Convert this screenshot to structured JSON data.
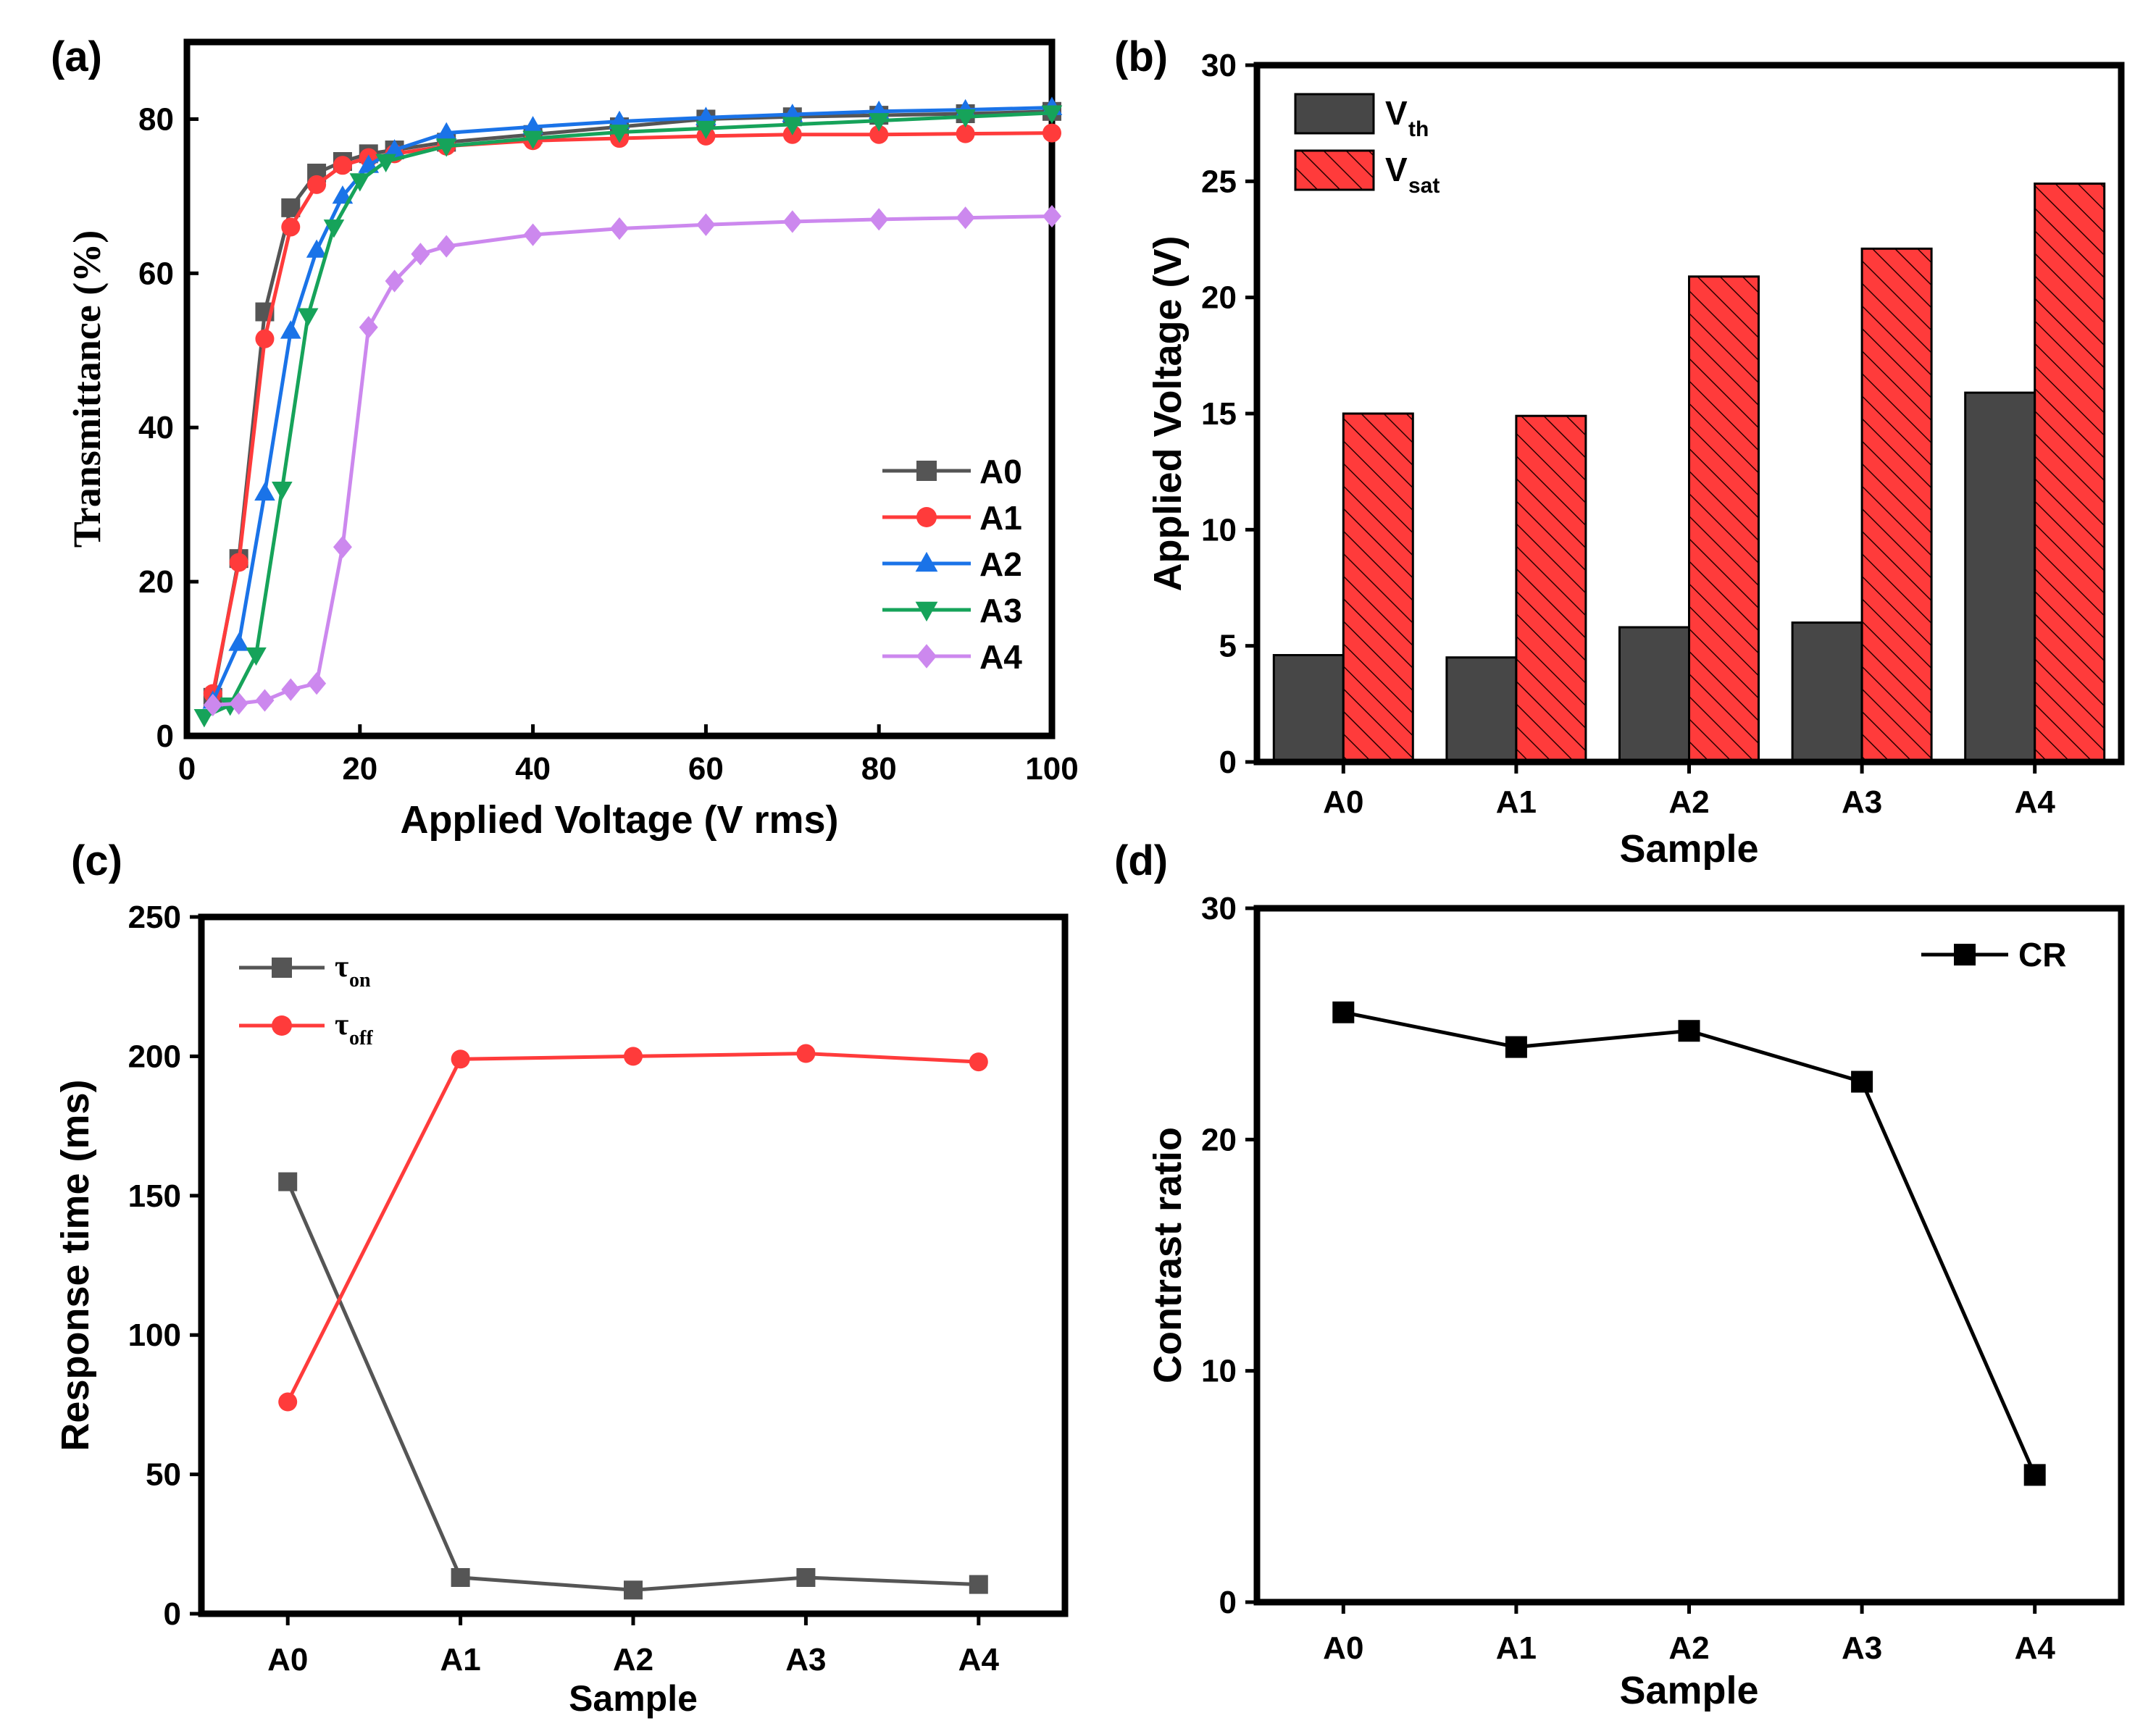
{
  "colors": {
    "A0": "#555555",
    "A1": "#ff3b3b",
    "A2": "#1a73e8",
    "A3": "#16a35a",
    "A4": "#cc88ee",
    "vth": "#474747",
    "vsat": "#ff3b3b",
    "ton": "#555555",
    "toff": "#ff3b3b",
    "cr": "#000000"
  },
  "chart_data": [
    {
      "panel": "(a)",
      "type": "line",
      "title": "",
      "xlabel": "Applied Voltage (V rms)",
      "ylabel": "Transmittance (%)",
      "xlim": [
        0,
        100
      ],
      "ylim": [
        0,
        90
      ],
      "xticks": [
        "0",
        "20",
        "40",
        "60",
        "80",
        "100"
      ],
      "yticks": [
        "0",
        "20",
        "40",
        "60",
        "80"
      ],
      "legend_position": "bottom-right",
      "series": [
        {
          "name": "A0",
          "marker": "square",
          "color_key": "A0",
          "x": [
            3,
            6,
            9,
            12,
            15,
            18,
            21,
            24,
            30,
            40,
            50,
            60,
            70,
            80,
            90,
            100
          ],
          "y": [
            5,
            23,
            55,
            68.5,
            73,
            74.5,
            75.5,
            76,
            77,
            78,
            79,
            80,
            80.3,
            80.5,
            80.7,
            81
          ]
        },
        {
          "name": "A1",
          "marker": "circle",
          "color_key": "A1",
          "x": [
            3,
            6,
            9,
            12,
            15,
            18,
            21,
            24,
            30,
            40,
            50,
            60,
            70,
            80,
            90,
            100
          ],
          "y": [
            5.5,
            22.5,
            51.5,
            66,
            71.5,
            74,
            75,
            75.5,
            76.5,
            77.2,
            77.5,
            77.8,
            78,
            78,
            78.1,
            78.2
          ]
        },
        {
          "name": "A2",
          "marker": "triangle-up",
          "color_key": "A2",
          "x": [
            3,
            6,
            9,
            12,
            15,
            18,
            21,
            24,
            30,
            40,
            50,
            60,
            70,
            80,
            90,
            100
          ],
          "y": [
            4.5,
            12,
            31.5,
            52.5,
            63,
            70,
            74,
            76,
            78.2,
            79,
            79.7,
            80.2,
            80.6,
            81,
            81.2,
            81.5
          ]
        },
        {
          "name": "A3",
          "marker": "triangle-down",
          "color_key": "A3",
          "x": [
            2,
            5,
            8,
            11,
            14,
            17,
            20,
            23,
            30,
            40,
            50,
            60,
            70,
            80,
            90,
            100
          ],
          "y": [
            2.5,
            4,
            10.5,
            32,
            54.5,
            66,
            72,
            74.5,
            76.5,
            77.5,
            78.3,
            78.8,
            79.3,
            79.8,
            80.3,
            80.8
          ]
        },
        {
          "name": "A4",
          "marker": "diamond",
          "color_key": "A4",
          "x": [
            3,
            6,
            9,
            12,
            15,
            18,
            21,
            24,
            27,
            30,
            40,
            50,
            60,
            70,
            80,
            90,
            100
          ],
          "y": [
            4,
            4.2,
            4.6,
            6,
            6.8,
            24.5,
            53,
            59,
            62.5,
            63.5,
            65,
            65.8,
            66.3,
            66.7,
            67,
            67.2,
            67.4
          ]
        }
      ]
    },
    {
      "panel": "(b)",
      "type": "bar",
      "title": "",
      "xlabel": "Sample",
      "ylabel": "Applied Voltage (V)",
      "categories": [
        "A0",
        "A1",
        "A2",
        "A3",
        "A4"
      ],
      "ylim": [
        0,
        30
      ],
      "yticks": [
        "0",
        "5",
        "10",
        "15",
        "20",
        "25",
        "30"
      ],
      "legend_position": "top-left",
      "series": [
        {
          "name": "V",
          "sub": "th",
          "color_key": "vth",
          "hatched": false,
          "values": [
            4.6,
            4.5,
            5.8,
            6.0,
            15.9
          ]
        },
        {
          "name": "V",
          "sub": "sat",
          "color_key": "vsat",
          "hatched": true,
          "values": [
            15.0,
            14.9,
            20.9,
            22.1,
            24.9
          ]
        }
      ]
    },
    {
      "panel": "(c)",
      "type": "line",
      "title": "",
      "xlabel": "Sample",
      "ylabel": "Response time (ms)",
      "categories": [
        "A0",
        "A1",
        "A2",
        "A3",
        "A4"
      ],
      "ylim": [
        0,
        250
      ],
      "yticks": [
        "0",
        "50",
        "100",
        "150",
        "200",
        "250"
      ],
      "legend_position": "top-left",
      "series": [
        {
          "name": "τ",
          "sub": "on",
          "marker": "square",
          "color_key": "ton",
          "values": [
            155,
            13,
            8.5,
            13,
            10.5
          ]
        },
        {
          "name": "τ",
          "sub": "off",
          "marker": "circle",
          "color_key": "toff",
          "values": [
            76,
            199,
            200,
            201,
            198
          ]
        }
      ]
    },
    {
      "panel": "(d)",
      "type": "line",
      "title": "",
      "xlabel": "Sample",
      "ylabel": "Contrast ratio",
      "categories": [
        "A0",
        "A1",
        "A2",
        "A3",
        "A4"
      ],
      "ylim": [
        0,
        30
      ],
      "yticks": [
        "0",
        "10",
        "20",
        "30"
      ],
      "legend_position": "top-right",
      "series": [
        {
          "name": "CR",
          "marker": "square",
          "color_key": "cr",
          "values": [
            25.5,
            24,
            24.7,
            22.5,
            5.5
          ]
        }
      ]
    }
  ]
}
